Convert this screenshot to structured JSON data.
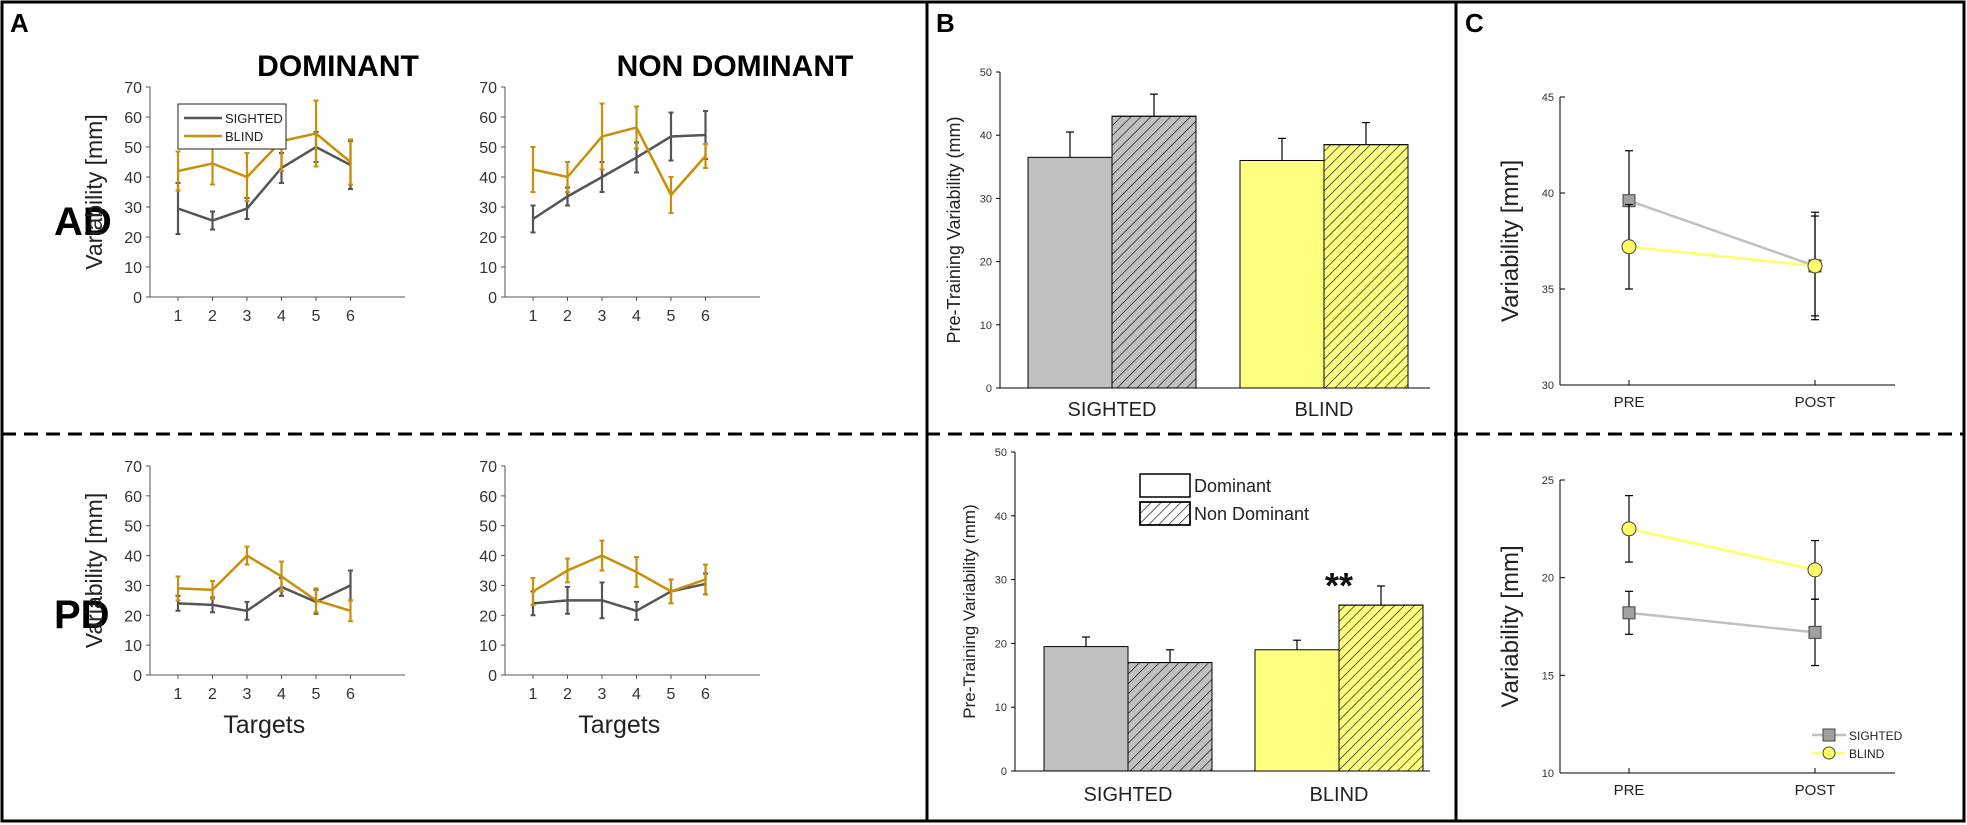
{
  "panel_labels": {
    "A": "A",
    "B": "B",
    "C": "C"
  },
  "row_labels": {
    "AD": "AD",
    "PD": "PD"
  },
  "col_titles": {
    "dominant": "DOMINANT",
    "non_dominant": "NON DOMINANT"
  },
  "colors": {
    "sighted_line": "#555555",
    "blind_line": "#C8900A",
    "sighted_bar": "#C0C0C0",
    "blind_bar": "#FFFF80",
    "sighted_marker": "#A0A0A0",
    "blind_marker": "#FFFF66",
    "sighted_c_line": "#C0C0C0",
    "blind_c_line": "#FFFF66"
  },
  "chart_data": [
    {
      "id": "A-AD-dom",
      "type": "line",
      "xlabel": "",
      "ylabel": "Variability [mm]",
      "ylim": [
        0,
        70
      ],
      "yticks": [
        0,
        10,
        20,
        30,
        40,
        50,
        60,
        70
      ],
      "x": [
        1,
        2,
        3,
        4,
        5,
        6
      ],
      "legend": {
        "placement": "top-left",
        "entries": [
          "SIGHTED",
          "BLIND"
        ]
      },
      "series": [
        {
          "name": "SIGHTED",
          "values": [
            29.5,
            25.5,
            29.5,
            43,
            50,
            44
          ],
          "errors": [
            8.5,
            3,
            3.5,
            5,
            5,
            8
          ]
        },
        {
          "name": "BLIND",
          "values": [
            42,
            44.5,
            40,
            52,
            54.5,
            45
          ],
          "errors": [
            6.5,
            7,
            8,
            10,
            11,
            7.5
          ]
        }
      ]
    },
    {
      "id": "A-AD-nondom",
      "type": "line",
      "xlabel": "",
      "ylabel": "",
      "ylim": [
        0,
        70
      ],
      "yticks": [
        0,
        10,
        20,
        30,
        40,
        50,
        60,
        70
      ],
      "x": [
        1,
        2,
        3,
        4,
        5,
        6
      ],
      "series": [
        {
          "name": "SIGHTED",
          "values": [
            26,
            33.5,
            40,
            46.5,
            53.5,
            54
          ],
          "errors": [
            4.5,
            3,
            5,
            5,
            8,
            8
          ]
        },
        {
          "name": "BLIND",
          "values": [
            42.5,
            40,
            53.5,
            56.5,
            34,
            47
          ],
          "errors": [
            7.5,
            5,
            11,
            7,
            6,
            4
          ]
        }
      ]
    },
    {
      "id": "A-PD-dom",
      "type": "line",
      "xlabel": "Targets",
      "ylabel": "Variability [mm]",
      "ylim": [
        0,
        70
      ],
      "yticks": [
        0,
        10,
        20,
        30,
        40,
        50,
        60,
        70
      ],
      "x": [
        1,
        2,
        3,
        4,
        5,
        6
      ],
      "series": [
        {
          "name": "SIGHTED",
          "values": [
            24,
            23.5,
            21.5,
            29.5,
            24.5,
            30
          ],
          "errors": [
            2.5,
            2.5,
            3,
            3,
            4,
            5
          ]
        },
        {
          "name": "BLIND",
          "values": [
            29,
            28.5,
            40,
            33,
            25,
            21.5
          ],
          "errors": [
            4,
            3,
            3,
            5,
            4,
            3.5
          ]
        }
      ]
    },
    {
      "id": "A-PD-nondom",
      "type": "line",
      "xlabel": "Targets",
      "ylabel": "",
      "ylim": [
        0,
        70
      ],
      "yticks": [
        0,
        10,
        20,
        30,
        40,
        50,
        60,
        70
      ],
      "x": [
        1,
        2,
        3,
        4,
        5,
        6
      ],
      "series": [
        {
          "name": "SIGHTED",
          "values": [
            24,
            25,
            25,
            21.5,
            28,
            30.5
          ],
          "errors": [
            4,
            4.5,
            6,
            3,
            4,
            3.5
          ]
        },
        {
          "name": "BLIND",
          "values": [
            28,
            35,
            40,
            34.5,
            28,
            32
          ],
          "errors": [
            4.5,
            4,
            5,
            5,
            4,
            5
          ]
        }
      ]
    },
    {
      "id": "B-top",
      "type": "bar",
      "categories": [
        "SIGHTED",
        "BLIND"
      ],
      "ylabel": "Pre-Training Variability (mm)",
      "ylim": [
        0,
        50
      ],
      "yticks": [
        0,
        10,
        20,
        30,
        40,
        50
      ],
      "series": [
        {
          "name": "Dominant",
          "values": [
            36.5,
            36
          ],
          "errors": [
            4,
            3.5
          ]
        },
        {
          "name": "Non Dominant",
          "values": [
            43,
            38.5
          ],
          "errors": [
            3.5,
            3.5
          ]
        }
      ]
    },
    {
      "id": "B-bottom",
      "type": "bar",
      "categories": [
        "SIGHTED",
        "BLIND"
      ],
      "ylabel": "Pre-Training Variability (mm)",
      "ylim": [
        0,
        50
      ],
      "yticks": [
        0,
        10,
        20,
        30,
        40,
        50
      ],
      "legend": {
        "placement": "top-center",
        "entries": [
          "Dominant",
          "Non Dominant"
        ]
      },
      "annotation": "**",
      "series": [
        {
          "name": "Dominant",
          "values": [
            19.5,
            19
          ],
          "errors": [
            1.5,
            1.5
          ]
        },
        {
          "name": "Non Dominant",
          "values": [
            17,
            26
          ],
          "errors": [
            2,
            3
          ]
        }
      ]
    },
    {
      "id": "C-top",
      "type": "line",
      "categories": [
        "PRE",
        "POST"
      ],
      "ylabel": "Variability [mm]",
      "ylim": [
        30,
        45
      ],
      "yticks": [
        30,
        35,
        40,
        45
      ],
      "series": [
        {
          "name": "SIGHTED",
          "values": [
            39.6,
            36.2
          ],
          "errors": [
            2.6,
            2.8
          ]
        },
        {
          "name": "BLIND",
          "values": [
            37.2,
            36.2
          ],
          "errors": [
            2.2,
            2.6
          ]
        }
      ]
    },
    {
      "id": "C-bottom",
      "type": "line",
      "categories": [
        "PRE",
        "POST"
      ],
      "ylabel": "Variability [mm]",
      "ylim": [
        10,
        25
      ],
      "yticks": [
        10,
        15,
        20,
        25
      ],
      "legend": {
        "placement": "bottom-right",
        "entries": [
          "SIGHTED",
          "BLIND"
        ]
      },
      "series": [
        {
          "name": "SIGHTED",
          "values": [
            18.2,
            17.2
          ],
          "errors": [
            1.1,
            1.7
          ]
        },
        {
          "name": "BLIND",
          "values": [
            22.5,
            20.4
          ],
          "errors": [
            1.7,
            1.5
          ]
        }
      ]
    }
  ]
}
